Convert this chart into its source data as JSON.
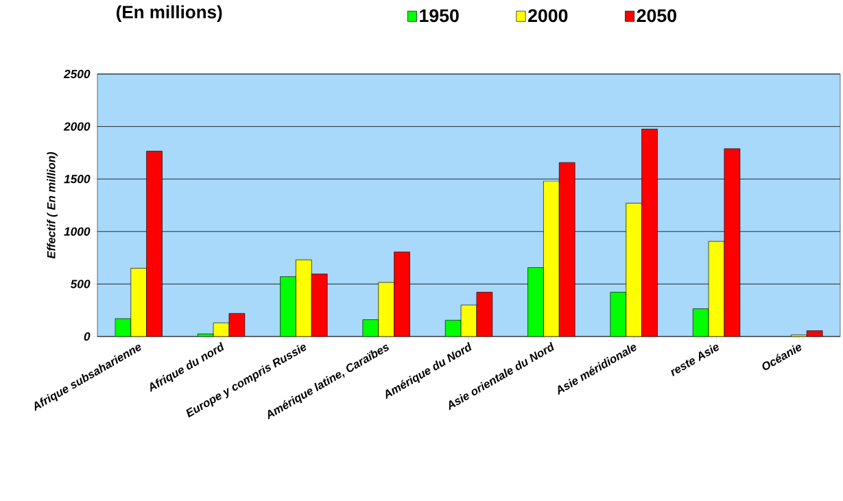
{
  "chart_data": {
    "type": "bar",
    "title": "(En millions)",
    "ylabel": "Effectif ( En million)",
    "categories": [
      "Afrique subsaharienne",
      "Afrique du nord",
      "Europe y compris Russie",
      "Amérique latine, Caraïbes",
      "Amérique du Nord",
      "Asie orientale du Nord",
      "Asie méridionale",
      "reste Asie",
      "Océanie"
    ],
    "series": [
      {
        "name": "1950",
        "color": "#00ff00",
        "values": [
          170,
          25,
          570,
          160,
          155,
          656,
          422,
          264,
          null
        ]
      },
      {
        "name": "2000",
        "color": "#ffff00",
        "values": [
          650,
          130,
          730,
          515,
          300,
          1481,
          1270,
          906,
          15
        ]
      },
      {
        "name": "2050",
        "color": "#ff0000",
        "values": [
          1765,
          220,
          595,
          805,
          422,
          1657,
          1976,
          1789,
          55
        ]
      }
    ],
    "ylim": [
      0,
      2500
    ],
    "yticks": [
      0,
      500,
      1000,
      1500,
      2000,
      2500
    ],
    "grid": "y",
    "legend": "top"
  }
}
